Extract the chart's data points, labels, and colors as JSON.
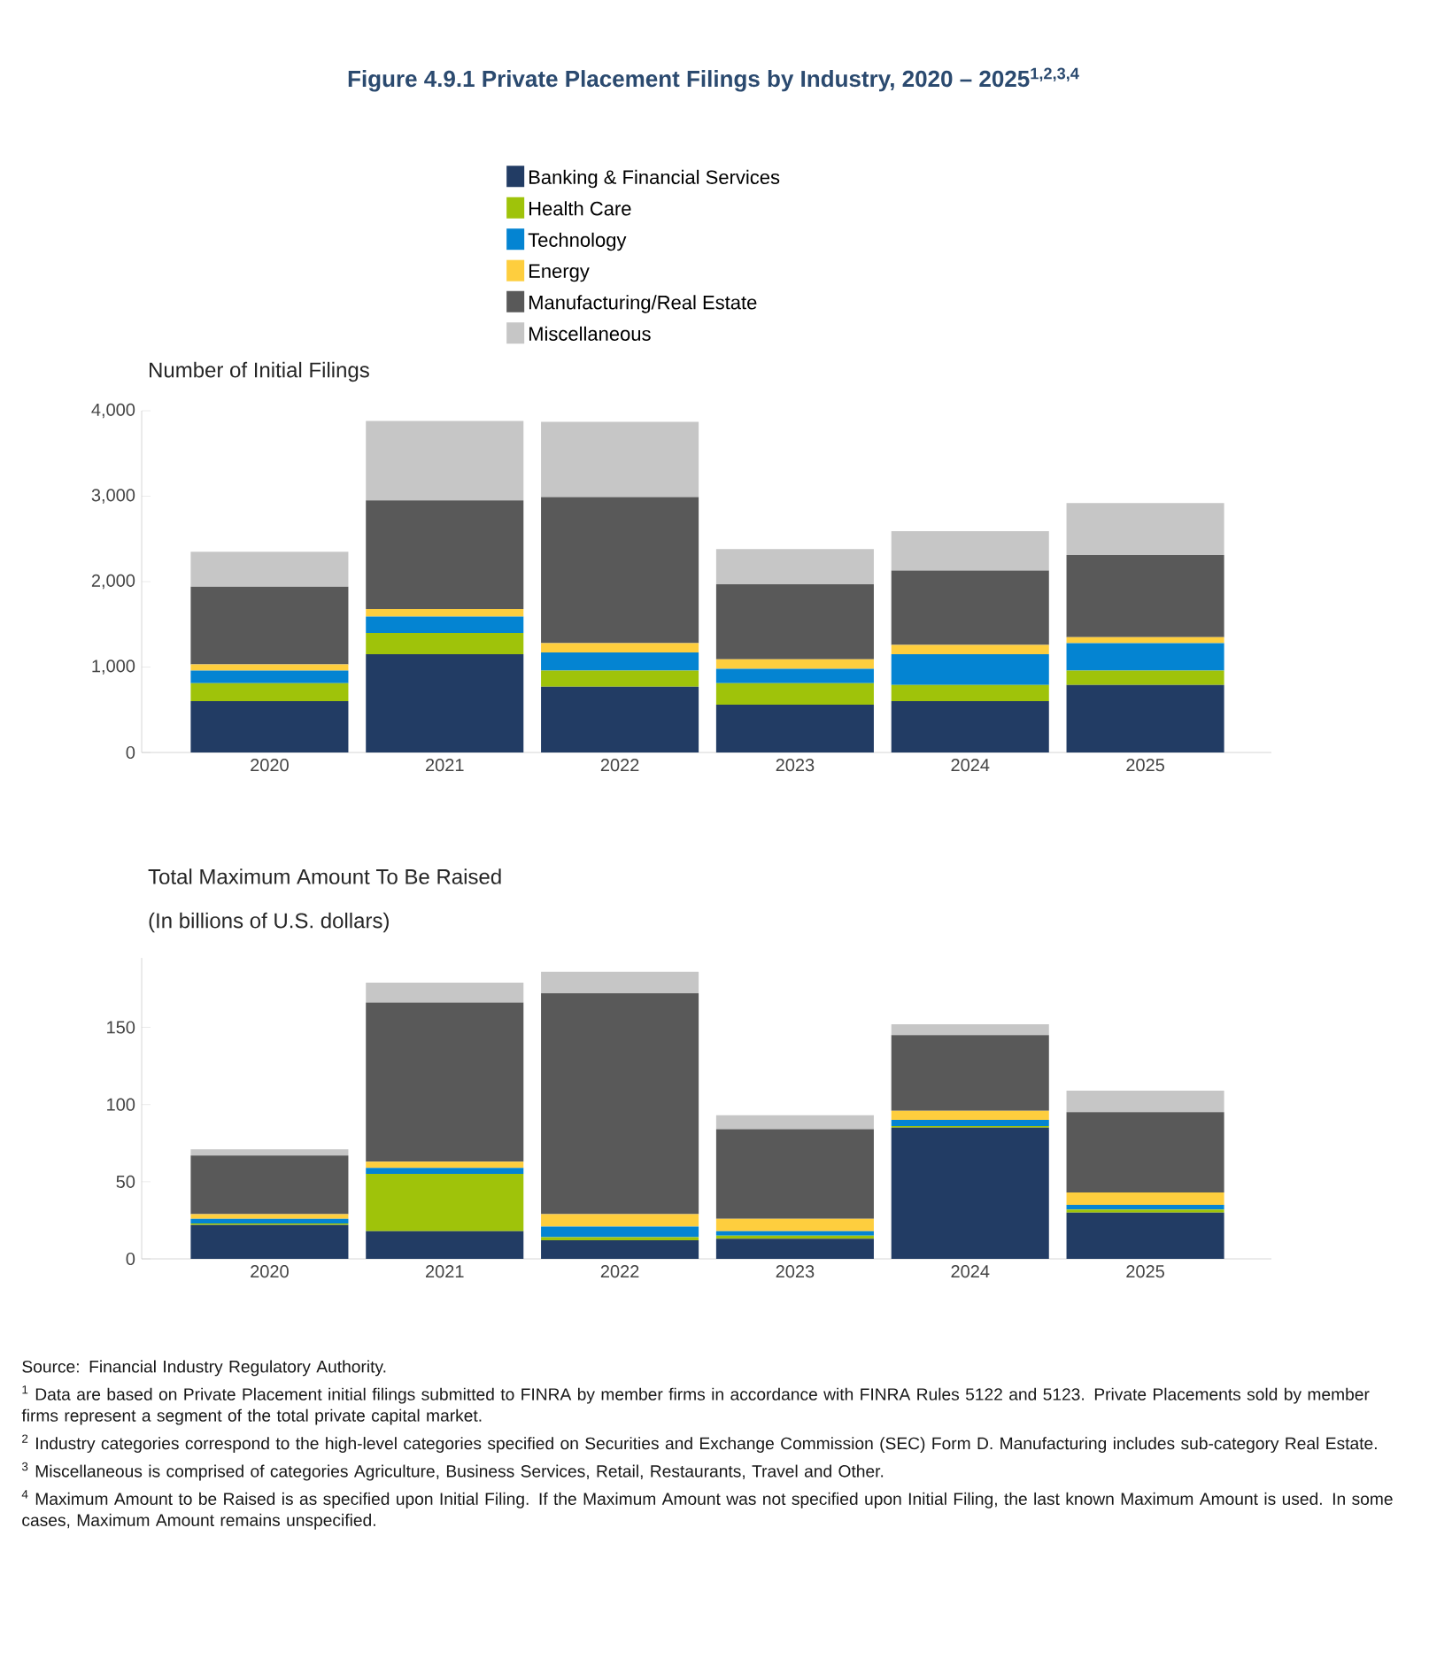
{
  "chart_data": [
    {
      "type": "bar",
      "title": "Figure 4.9.1 Private Placement Filings by Industry, 2020 – 2025$^{1,2,3,4}$",
      "subtitle": "Number of Initial Filings",
      "categories": [
        "2020",
        "2021",
        "2022",
        "2023",
        "2024",
        "2025"
      ],
      "stacked": true,
      "legend": "top",
      "ylim": [
        0,
        4000
      ],
      "yticks": [
        {
          "value": 0,
          "label": "0"
        },
        {
          "value": 1000,
          "label": "1,000"
        },
        {
          "value": 2000,
          "label": "2,000"
        },
        {
          "value": 3000,
          "label": "3,000"
        },
        {
          "value": 4000,
          "label": "4,000"
        }
      ],
      "series": [
        {
          "name": "Banking & Financial Services",
          "color": "#223c64",
          "values": [
            600,
            1150,
            770,
            560,
            600,
            790
          ]
        },
        {
          "name": "Health Care",
          "color": "#9fc30a",
          "values": [
            210,
            250,
            190,
            250,
            190,
            170
          ]
        },
        {
          "name": "Technology",
          "color": "#0484d2",
          "values": [
            150,
            190,
            210,
            170,
            360,
            320
          ]
        },
        {
          "name": "Energy",
          "color": "#fece3e",
          "values": [
            70,
            90,
            110,
            110,
            110,
            70
          ]
        },
        {
          "name": "Manufacturing/Real Estate",
          "color": "#595959",
          "values": [
            910,
            1270,
            1710,
            880,
            870,
            960
          ]
        },
        {
          "name": "Miscellaneous",
          "color": "#c6c6c6",
          "values": [
            410,
            930,
            880,
            410,
            460,
            610
          ]
        }
      ]
    },
    {
      "type": "bar",
      "title": "Total Maximum Amount To Be Raised",
      "subtitle": "(In billions of U.S. dollars)",
      "categories": [
        "2020",
        "2021",
        "2022",
        "2023",
        "2024",
        "2025"
      ],
      "stacked": true,
      "ylim": [
        0,
        195
      ],
      "yticks": [
        0,
        50,
        100,
        150
      ],
      "series": [
        {
          "color": "#223c64",
          "values": [
            22,
            18,
            12,
            13,
            85,
            30
          ]
        },
        {
          "color": "#9fc30a",
          "values": [
            1,
            37,
            2,
            2,
            1,
            2
          ]
        },
        {
          "color": "#0484d2",
          "values": [
            3,
            4,
            7,
            3,
            4,
            3
          ]
        },
        {
          "color": "#fece3e",
          "values": [
            3,
            4,
            8,
            8,
            6,
            8
          ]
        },
        {
          "color": "#595959",
          "values": [
            38,
            103,
            143,
            58,
            49,
            52
          ]
        },
        {
          "color": "#c6c6c6",
          "values": [
            4,
            13,
            14,
            9,
            7,
            14
          ]
        }
      ],
      "annotations": [
        "Source: Financial Industry Regulatory Authority.",
        "$^{1}$ Data are based on Private Placement initial filings submitted to FINRA by member firms in accordance with FINRA Rules 5122 and 5123. Private Placements sold by member firms represent a segment of the total private capital market.",
        "$^{2}$ Industry categories correspond to the high-level categories specified on Securities and Exchange Commission (SEC) Form D. Manufacturing includes sub-category Real Estate.",
        "$^{3}$ Miscellaneous is comprised of categories Agriculture, Business Services, Retail, Restaurants, Travel and Other.",
        "$^{4}$ Maximum Amount to be Raised is as specified upon Initial Filing. If the Maximum Amount was not specified upon Initial Filing, the last known Maximum Amount is used. In some cases, Maximum Amount remains unspecified."
      ]
    }
  ]
}
